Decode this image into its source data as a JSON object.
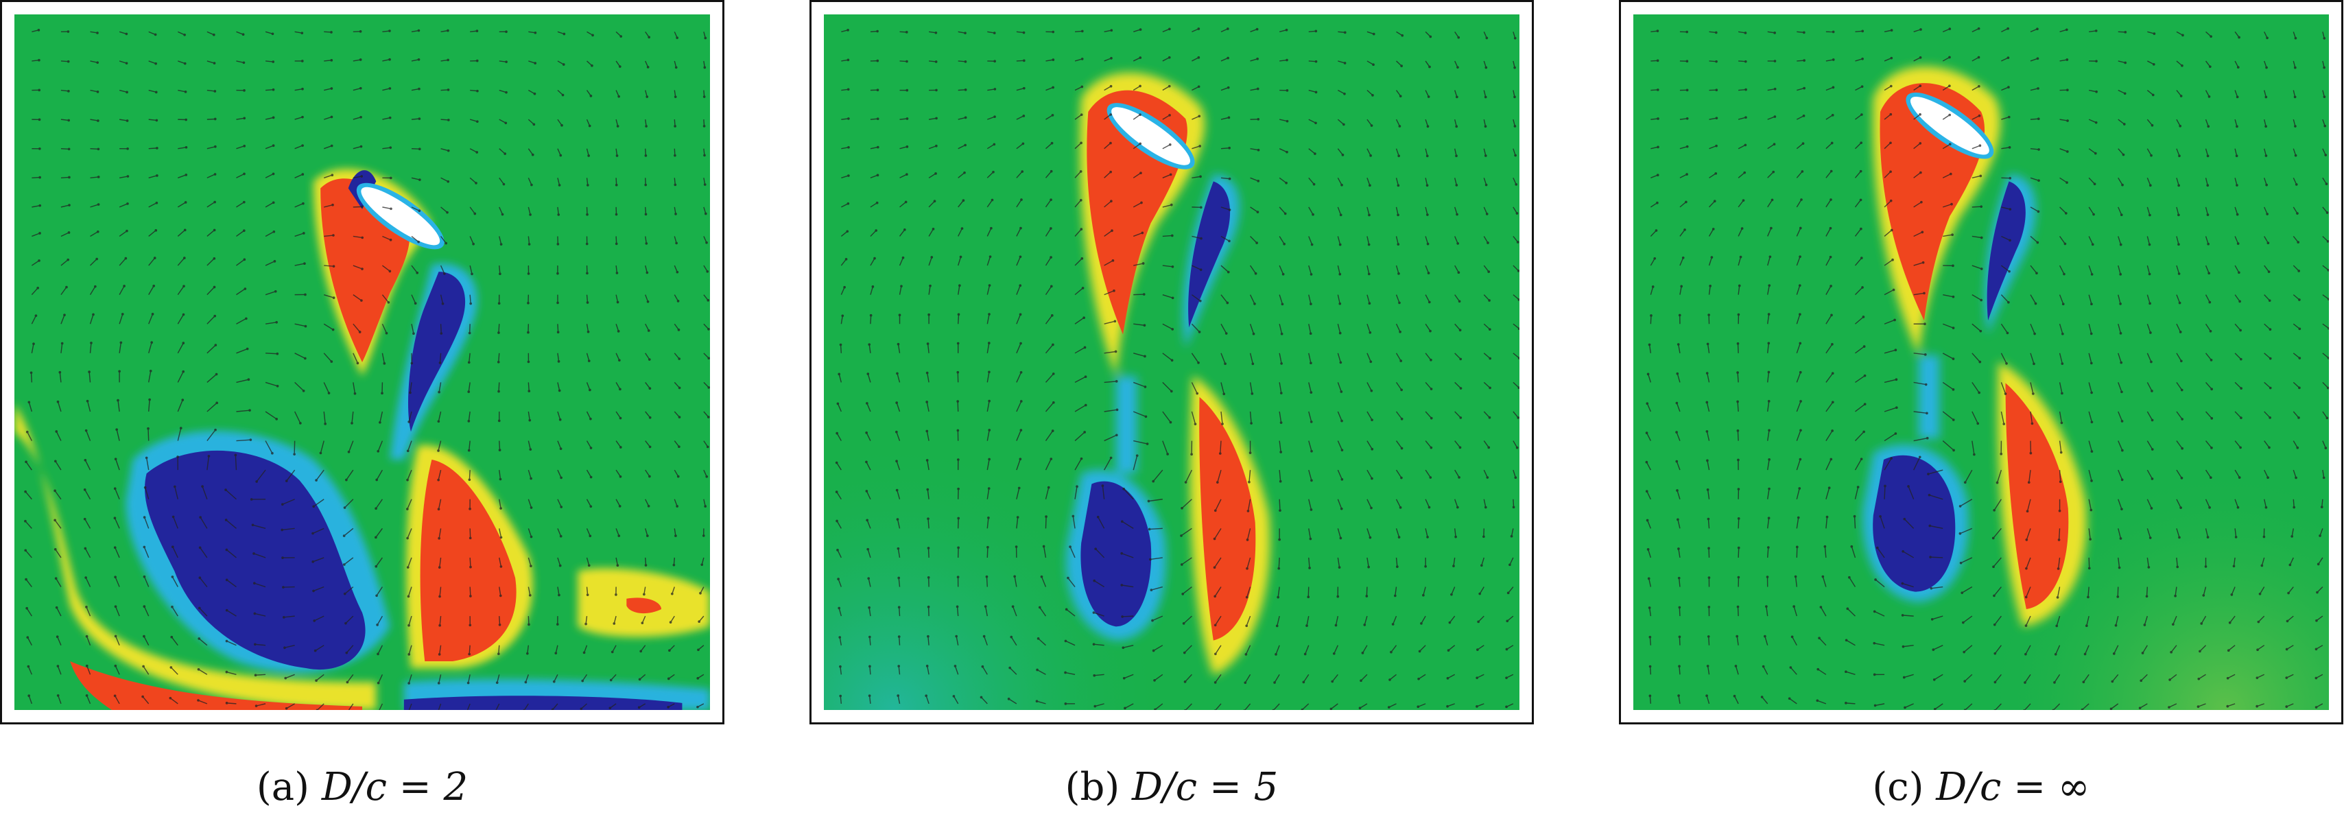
{
  "panels": [
    {
      "id": "a",
      "label": "(a)",
      "ratio": "D/c = 2"
    },
    {
      "id": "b",
      "label": "(b)",
      "ratio": "D/c = 5"
    },
    {
      "id": "c",
      "label": "(c)",
      "ratio": "D/c = ∞"
    }
  ],
  "colormap": {
    "background": "#19b04a",
    "positive": "#f0451e",
    "negative": "#22259c",
    "edge_warm": "#f5e52a",
    "edge_cold": "#2ab3e6",
    "body": "#ffffff",
    "arrow": "#222222"
  }
}
